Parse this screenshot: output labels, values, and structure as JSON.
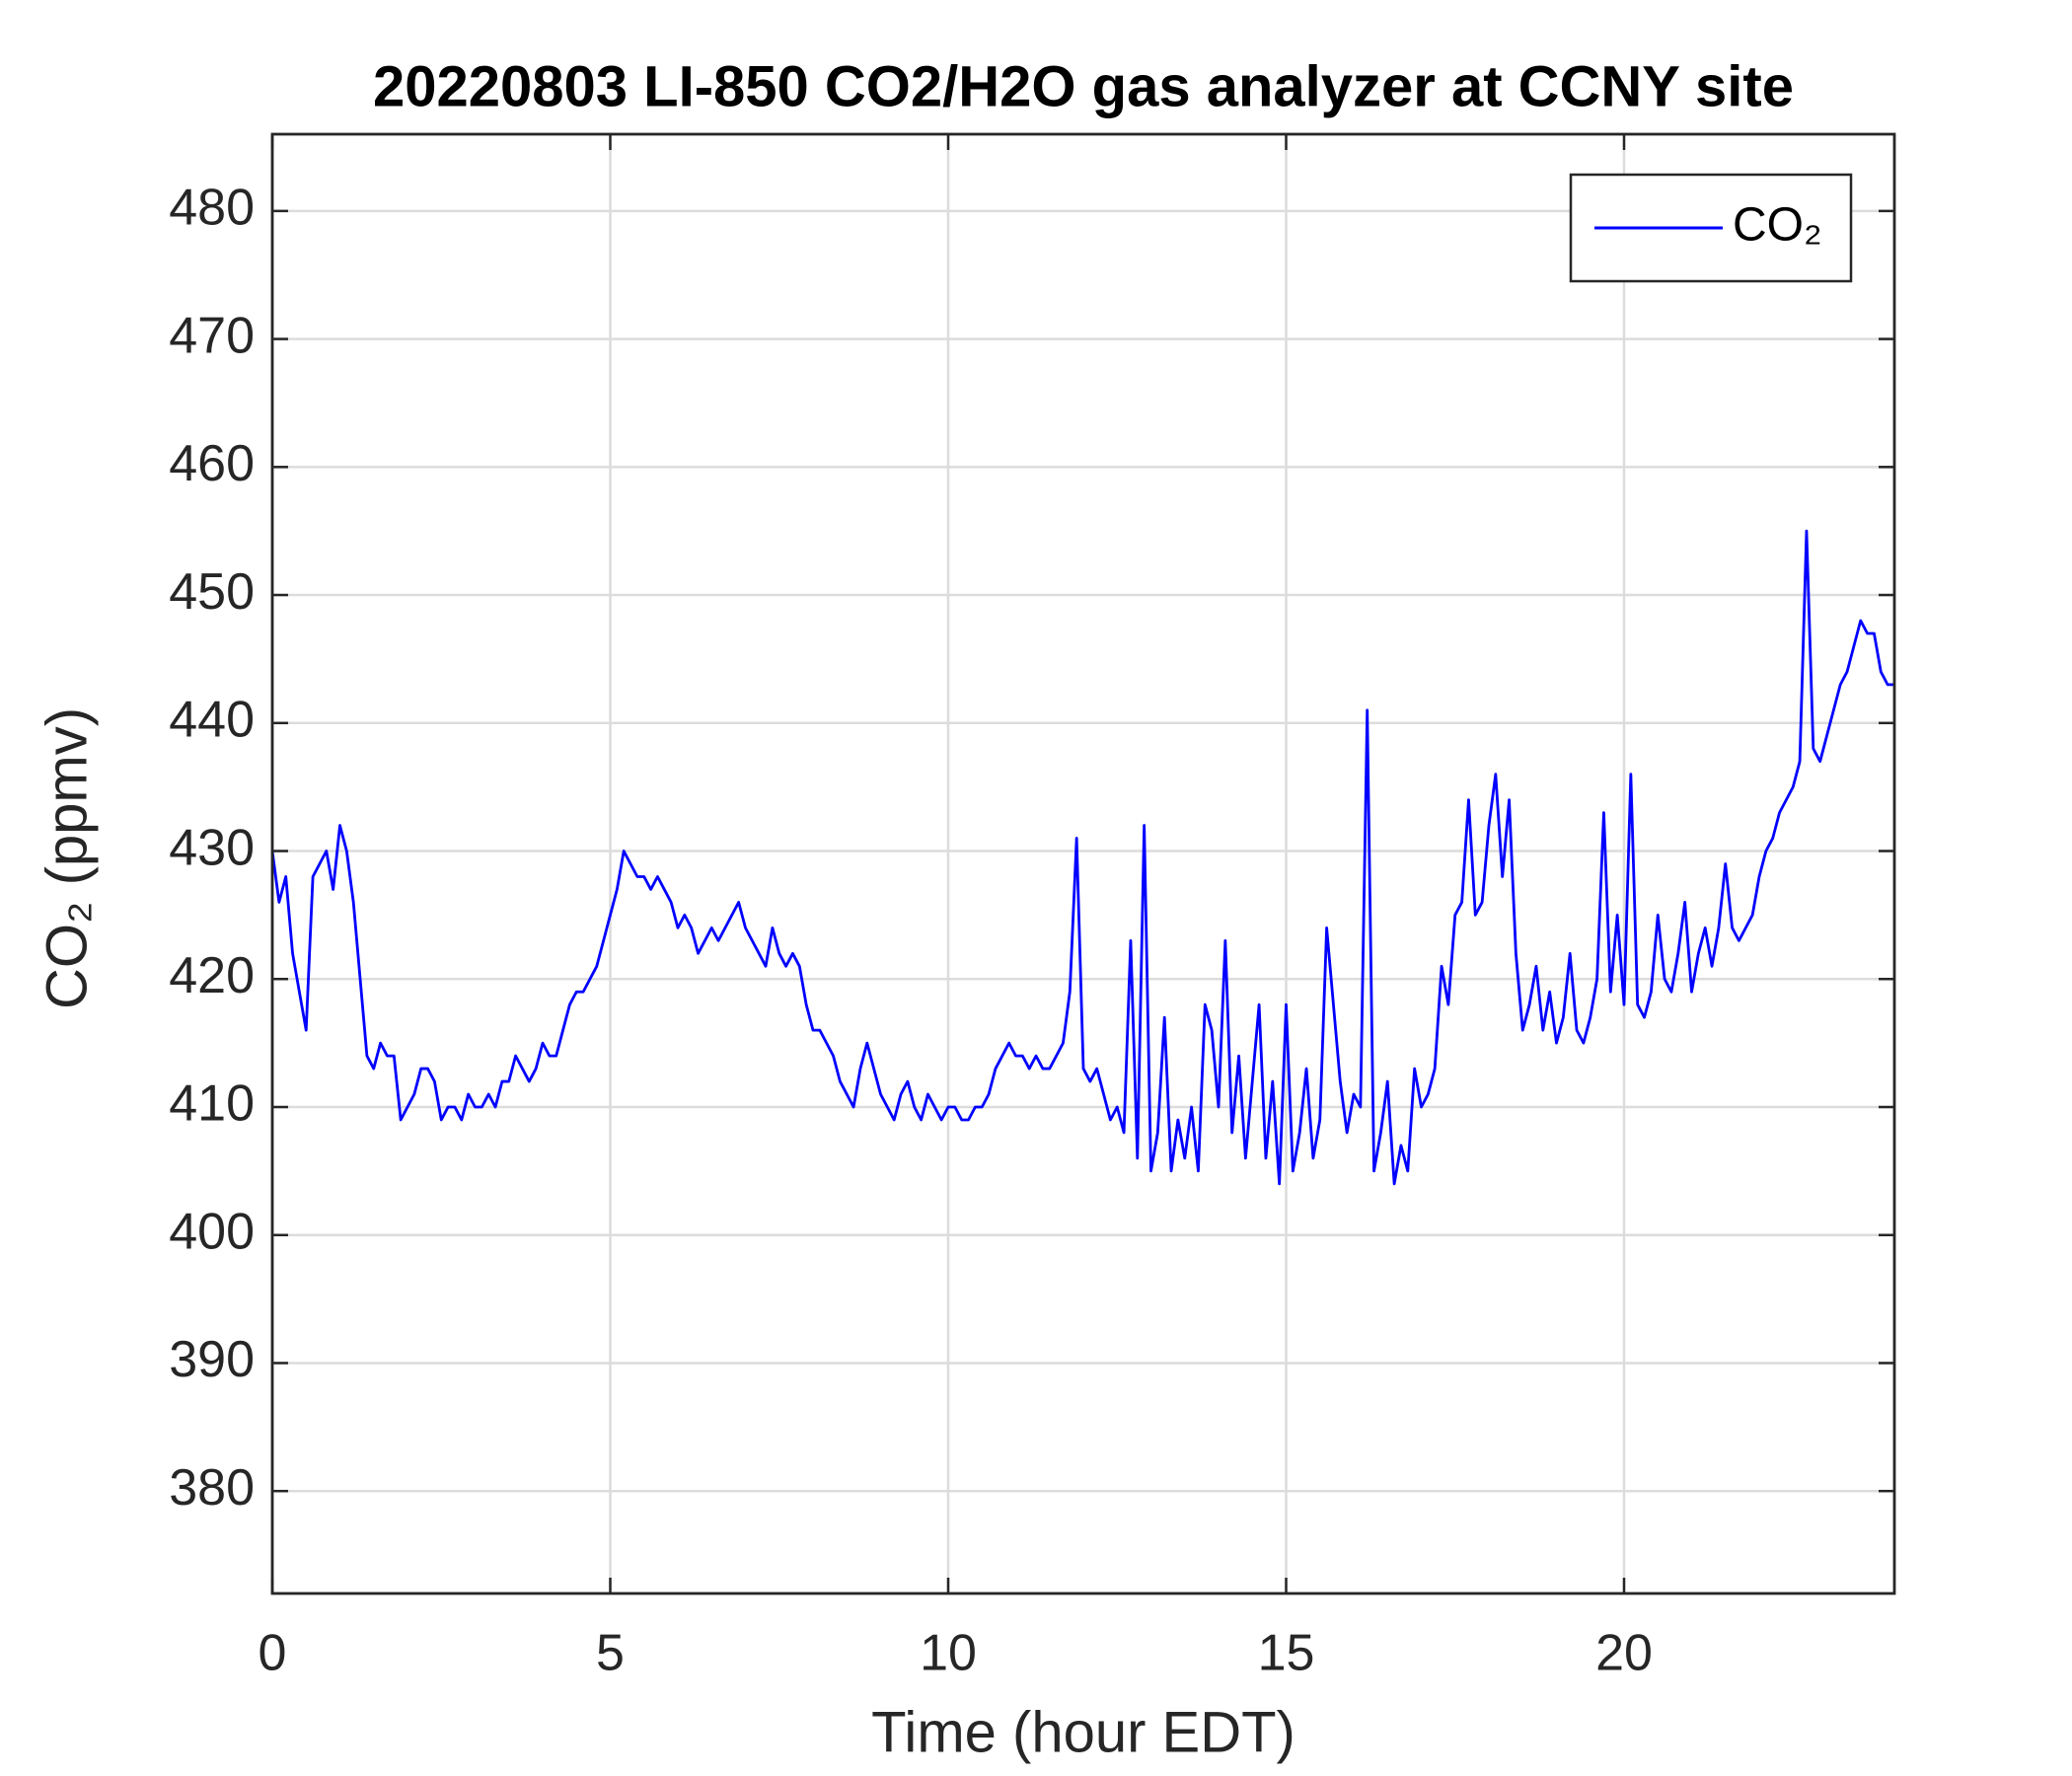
{
  "chart_data": {
    "type": "line",
    "title": "20220803 LI-850 CO2/H2O gas analyzer at CCNY site",
    "x_label": "Time (hour EDT)",
    "y_label": "CO₂ (ppmv)",
    "xlim": [
      0,
      24
    ],
    "xticks": [
      0,
      5,
      10,
      15,
      20
    ],
    "ylim": [
      372,
      486
    ],
    "yticks": [
      380,
      390,
      400,
      410,
      420,
      430,
      440,
      450,
      460,
      470,
      480
    ],
    "grid": true,
    "legend": "top-right",
    "x": [
      0,
      0.1,
      0.2,
      0.3,
      0.4,
      0.5,
      0.6,
      0.7,
      0.8,
      0.9,
      1,
      1.1,
      1.2,
      1.3,
      1.4,
      1.5,
      1.6,
      1.7,
      1.8,
      1.9,
      2,
      2.1,
      2.2,
      2.3,
      2.4,
      2.5,
      2.6,
      2.7,
      2.8,
      2.9,
      3,
      3.1,
      3.2,
      3.3,
      3.4,
      3.5,
      3.6,
      3.7,
      3.8,
      3.9,
      4,
      4.1,
      4.2,
      4.3,
      4.4,
      4.5,
      4.6,
      4.7,
      4.8,
      4.9,
      5,
      5.1,
      5.2,
      5.3,
      5.4,
      5.5,
      5.6,
      5.7,
      5.8,
      5.9,
      6,
      6.1,
      6.2,
      6.3,
      6.4,
      6.5,
      6.6,
      6.7,
      6.8,
      6.9,
      7,
      7.1,
      7.2,
      7.3,
      7.4,
      7.5,
      7.6,
      7.7,
      7.8,
      7.9,
      8,
      8.1,
      8.2,
      8.3,
      8.4,
      8.5,
      8.6,
      8.7,
      8.8,
      8.9,
      9,
      9.1,
      9.2,
      9.3,
      9.4,
      9.5,
      9.6,
      9.7,
      9.8,
      9.9,
      10,
      10.1,
      10.2,
      10.3,
      10.4,
      10.5,
      10.6,
      10.7,
      10.8,
      10.9,
      11,
      11.1,
      11.2,
      11.3,
      11.4,
      11.5,
      11.6,
      11.7,
      11.8,
      11.9,
      12,
      12.1,
      12.2,
      12.3,
      12.4,
      12.5,
      12.6,
      12.7,
      12.8,
      12.9,
      13,
      13.1,
      13.2,
      13.3,
      13.4,
      13.5,
      13.6,
      13.7,
      13.8,
      13.9,
      14,
      14.1,
      14.2,
      14.3,
      14.4,
      14.5,
      14.6,
      14.7,
      14.8,
      14.9,
      15,
      15.1,
      15.2,
      15.3,
      15.4,
      15.5,
      15.6,
      15.7,
      15.8,
      15.9,
      16,
      16.1,
      16.2,
      16.3,
      16.4,
      16.5,
      16.6,
      16.7,
      16.8,
      16.9,
      17,
      17.1,
      17.2,
      17.3,
      17.4,
      17.5,
      17.6,
      17.7,
      17.8,
      17.9,
      18,
      18.1,
      18.2,
      18.3,
      18.4,
      18.5,
      18.6,
      18.7,
      18.8,
      18.9,
      19,
      19.1,
      19.2,
      19.3,
      19.4,
      19.5,
      19.6,
      19.7,
      19.8,
      19.9,
      20,
      20.1,
      20.2,
      20.3,
      20.4,
      20.5,
      20.6,
      20.7,
      20.8,
      20.9,
      21,
      21.1,
      21.2,
      21.3,
      21.4,
      21.5,
      21.6,
      21.7,
      21.8,
      21.9,
      22,
      22.1,
      22.2,
      22.3,
      22.4,
      22.5,
      22.6,
      22.7,
      22.8,
      22.9,
      23,
      23.1,
      23.2,
      23.3,
      23.4,
      23.5,
      23.6,
      23.7,
      23.8,
      23.9,
      24
    ],
    "series": [
      {
        "name": "CO₂",
        "color": "#0000ff",
        "values": [
          430,
          426,
          428,
          422,
          419,
          416,
          428,
          429,
          430,
          427,
          432,
          430,
          426,
          420,
          414,
          413,
          415,
          414,
          414,
          409,
          410,
          411,
          413,
          413,
          412,
          409,
          410,
          410,
          409,
          411,
          410,
          410,
          411,
          410,
          412,
          412,
          414,
          413,
          412,
          413,
          415,
          414,
          414,
          416,
          418,
          419,
          419,
          420,
          421,
          423,
          425,
          427,
          430,
          429,
          428,
          428,
          427,
          428,
          427,
          426,
          424,
          425,
          424,
          422,
          423,
          424,
          423,
          424,
          425,
          426,
          424,
          423,
          422,
          421,
          424,
          422,
          421,
          422,
          421,
          418,
          416,
          416,
          415,
          414,
          412,
          411,
          410,
          413,
          415,
          413,
          411,
          410,
          409,
          411,
          412,
          410,
          409,
          411,
          410,
          409,
          410,
          410,
          409,
          409,
          410,
          410,
          411,
          413,
          414,
          415,
          414,
          414,
          413,
          414,
          413,
          413,
          414,
          415,
          419,
          431,
          413,
          412,
          413,
          411,
          409,
          410,
          408,
          423,
          406,
          432,
          405,
          408,
          417,
          405,
          409,
          406,
          410,
          405,
          418,
          416,
          410,
          423,
          408,
          414,
          406,
          412,
          418,
          406,
          412,
          404,
          418,
          405,
          408,
          413,
          406,
          409,
          424,
          418,
          412,
          408,
          411,
          410,
          441,
          405,
          408,
          412,
          404,
          407,
          405,
          413,
          410,
          411,
          413,
          421,
          418,
          425,
          426,
          434,
          425,
          426,
          432,
          436,
          428,
          434,
          422,
          416,
          418,
          421,
          416,
          419,
          415,
          417,
          422,
          416,
          415,
          417,
          420,
          433,
          419,
          425,
          418,
          436,
          418,
          417,
          419,
          425,
          420,
          419,
          422,
          426,
          419,
          422,
          424,
          421,
          424,
          429,
          424,
          423,
          424,
          425,
          428,
          430,
          431,
          433,
          434,
          435,
          437,
          455,
          438,
          437,
          439,
          441,
          443,
          444,
          446,
          448,
          447,
          447,
          444,
          443,
          443
        ]
      }
    ]
  }
}
